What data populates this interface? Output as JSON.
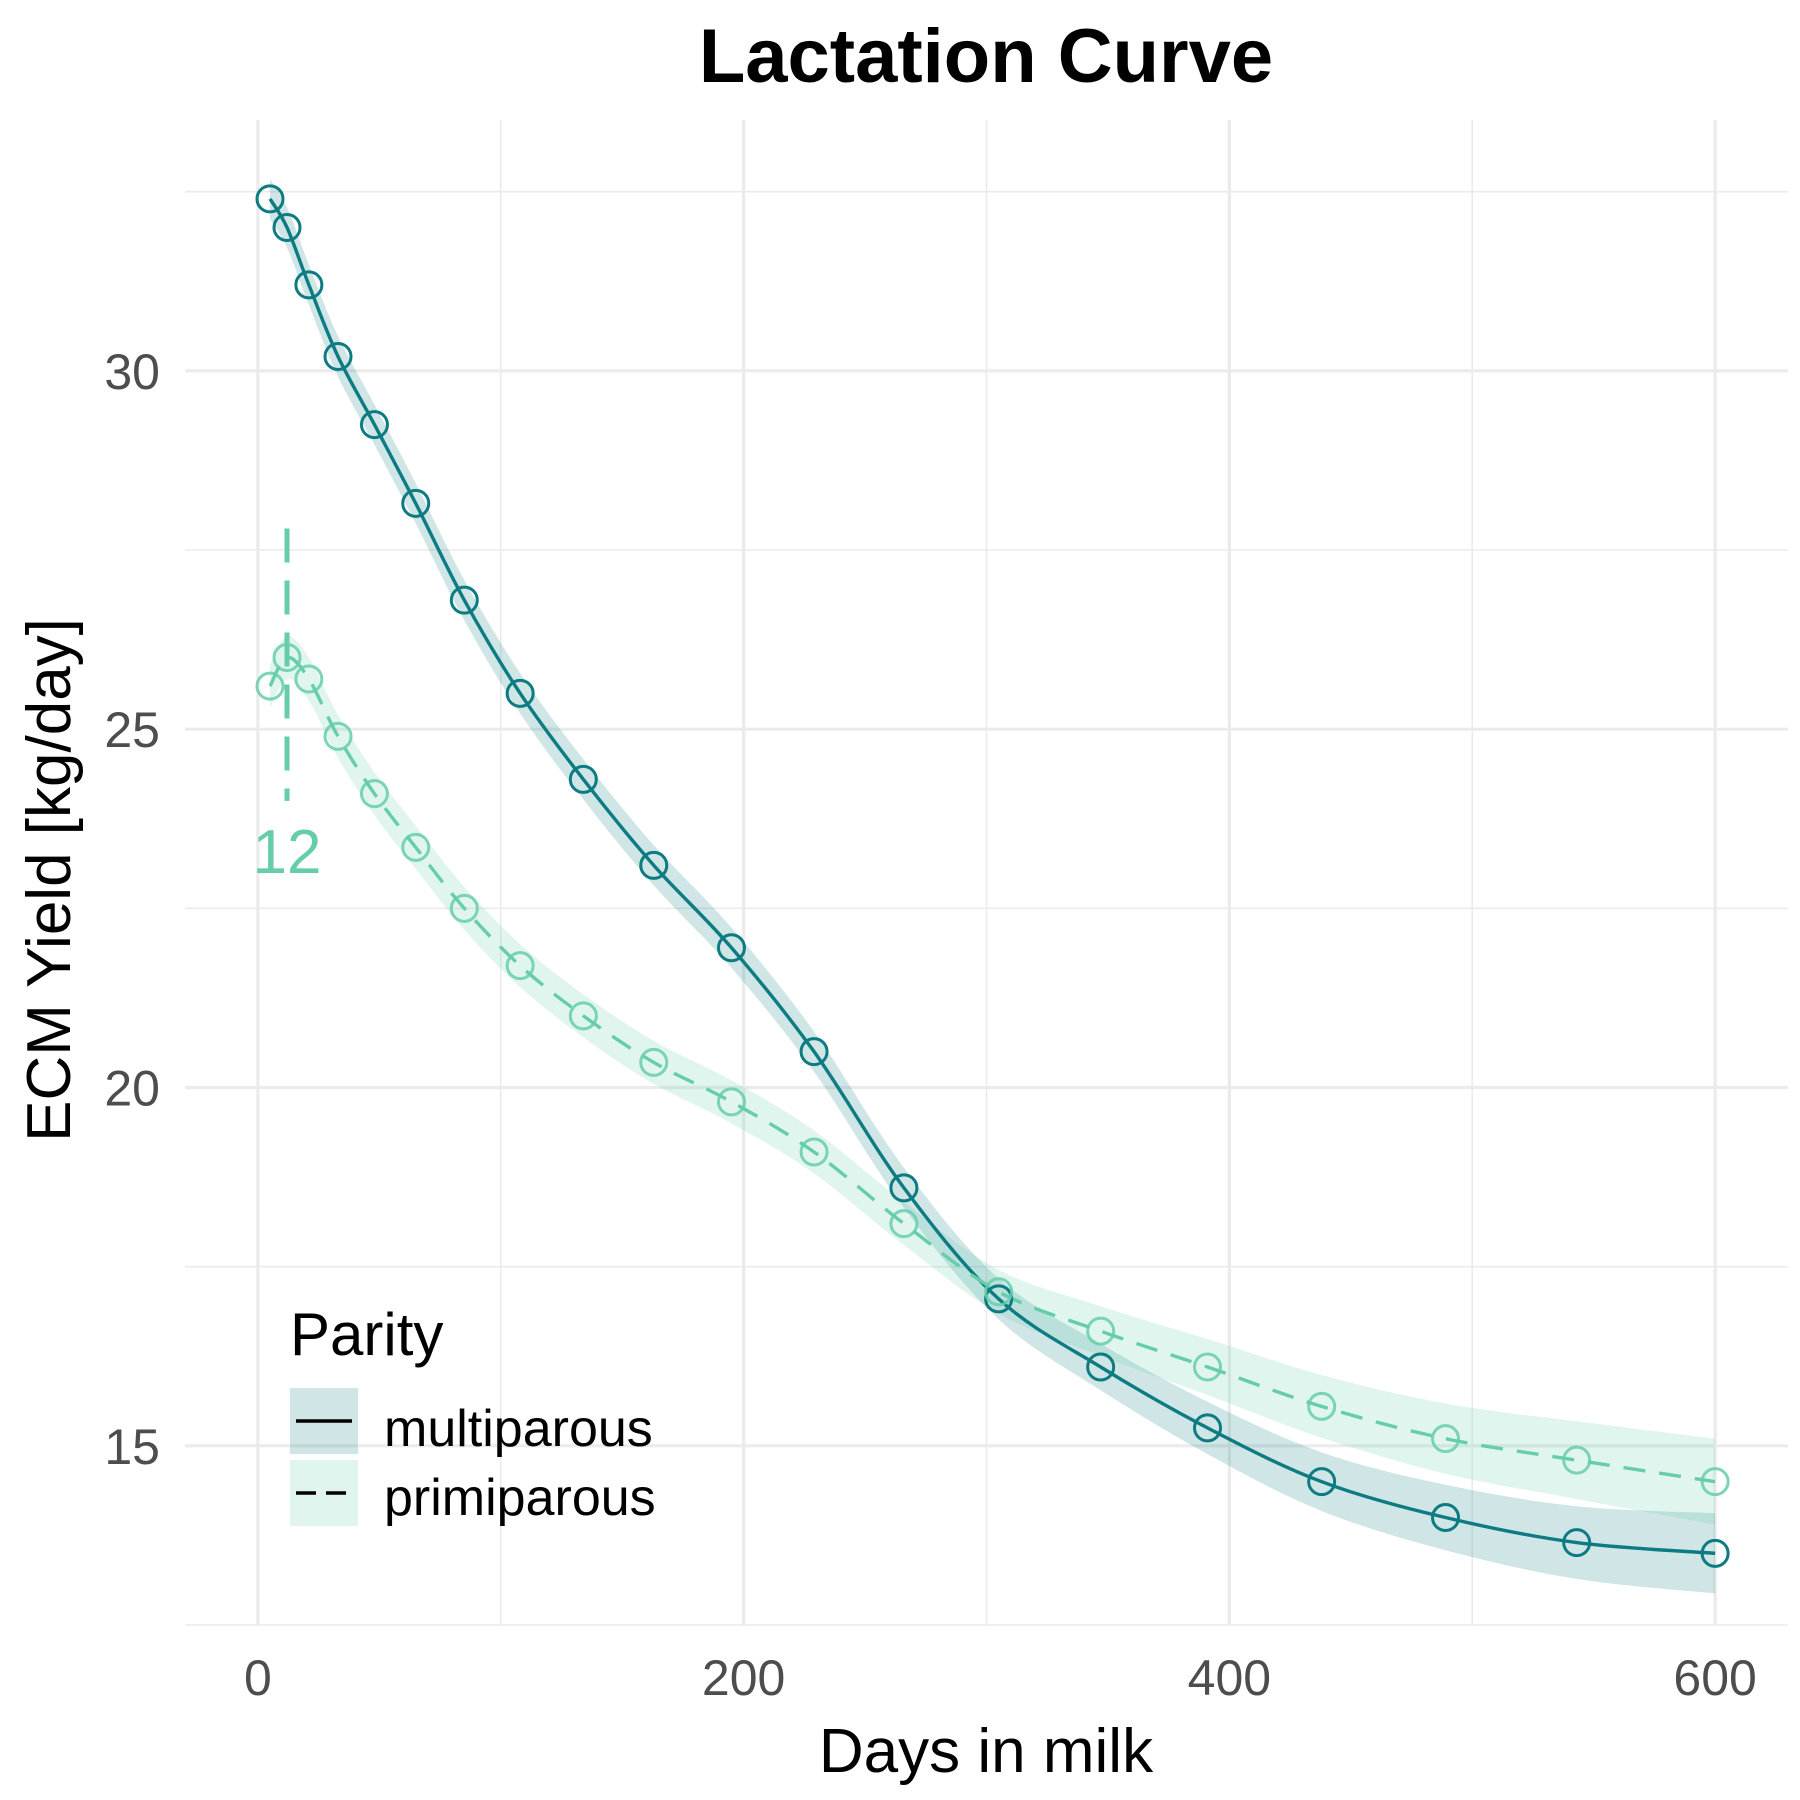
{
  "chart_data": {
    "type": "line",
    "title": "Lactation Curve",
    "xlabel": "Days in milk",
    "ylabel": "ECM Yield [kg/day]",
    "xlim": [
      -30,
      630
    ],
    "ylim": [
      12.5,
      33.5
    ],
    "x_ticks": [
      0,
      200,
      400,
      600
    ],
    "x_tick_labels": [
      "0",
      "200",
      "400",
      "600"
    ],
    "y_ticks": [
      15,
      20,
      25,
      30
    ],
    "y_tick_labels": [
      "15",
      "20",
      "25",
      "30"
    ],
    "grid": true,
    "legend": {
      "title": "Parity",
      "position": "bottom-left"
    },
    "series": [
      {
        "name": "multiparous",
        "color": "#0d7b82",
        "line_style": "solid",
        "x": [
          5,
          12,
          21,
          33,
          48,
          65,
          85,
          108,
          134,
          163,
          195,
          229,
          266,
          305,
          347,
          391,
          438,
          489,
          543,
          600
        ],
        "y": [
          32.4,
          32.0,
          31.2,
          30.2,
          29.25,
          28.15,
          26.8,
          25.5,
          24.3,
          23.1,
          21.95,
          20.5,
          18.6,
          17.05,
          16.1,
          15.25,
          14.5,
          14.0,
          13.65,
          13.5
        ],
        "band_halfwidth": 0.28
      },
      {
        "name": "primiparous",
        "color": "#66cdaa",
        "line_style": "dashed",
        "x": [
          5,
          12,
          21,
          33,
          48,
          65,
          85,
          108,
          134,
          163,
          195,
          229,
          266,
          305,
          347,
          391,
          438,
          489,
          543,
          600
        ],
        "y": [
          25.6,
          26.0,
          25.7,
          24.9,
          24.1,
          23.35,
          22.5,
          21.7,
          21.0,
          20.35,
          19.8,
          19.1,
          18.1,
          17.15,
          16.6,
          16.1,
          15.55,
          15.1,
          14.8,
          14.5
        ],
        "band_halfwidth": 0.3
      }
    ],
    "annotations": [
      {
        "text": "12",
        "x": 12,
        "y_from": 24.0,
        "y_to": 27.8,
        "color": "#66cdaa"
      }
    ]
  }
}
